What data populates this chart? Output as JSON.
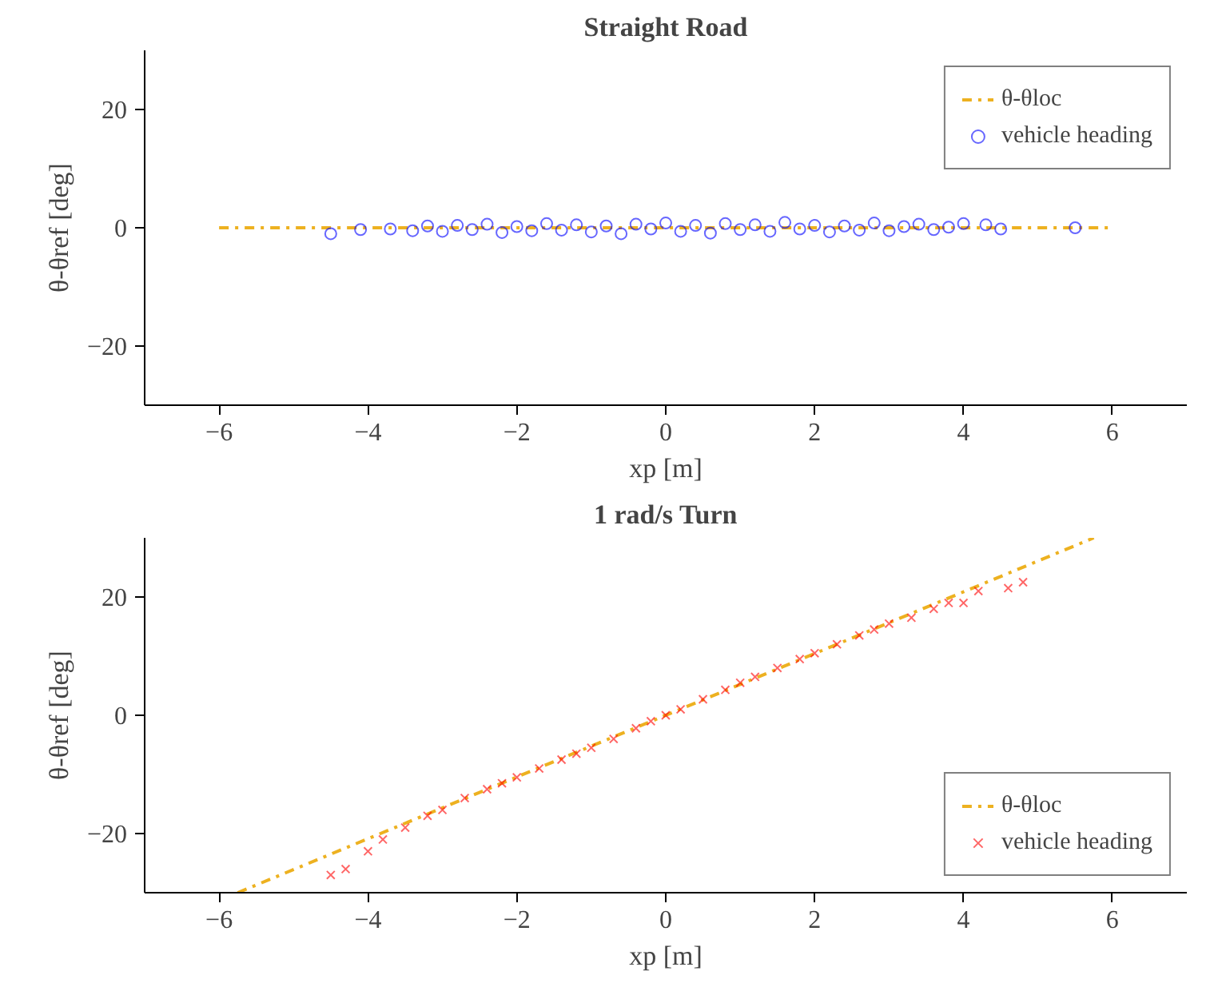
{
  "chart_data": [
    {
      "type": "scatter",
      "title": "Straight Road",
      "xlabel": "xp [m]",
      "ylabel": "θ-θref [deg]",
      "xlim": [
        -7,
        7
      ],
      "ylim": [
        -30,
        30
      ],
      "xticks": [
        -6,
        -4,
        -2,
        0,
        2,
        4,
        6
      ],
      "yticks": [
        -20,
        0,
        20
      ],
      "grid": false,
      "legend": "top right",
      "series": [
        {
          "name": "θ-θloc",
          "type": "line",
          "color": "#edb120",
          "line_style": "dashdot",
          "x": [
            -6,
            6
          ],
          "values": [
            0,
            0
          ]
        },
        {
          "name": "vehicle heading",
          "color": "#0000ff",
          "marker": "circle",
          "x": [
            -4.5,
            -4.1,
            -3.7,
            -3.4,
            -3.2,
            -3.0,
            -2.8,
            -2.6,
            -2.4,
            -2.2,
            -2.0,
            -1.8,
            -1.6,
            -1.4,
            -1.2,
            -1.0,
            -0.8,
            -0.6,
            -0.4,
            -0.2,
            0,
            0.2,
            0.4,
            0.6,
            0.8,
            1.0,
            1.2,
            1.4,
            1.6,
            1.8,
            2.0,
            2.2,
            2.4,
            2.6,
            2.8,
            3.0,
            3.2,
            3.4,
            3.6,
            3.8,
            4.0,
            4.3,
            4.5,
            5.5
          ],
          "values": [
            -1,
            -0.3,
            -0.2,
            -0.5,
            0.3,
            -0.6,
            0.4,
            -0.3,
            0.6,
            -0.8,
            0.2,
            -0.5,
            0.7,
            -0.4,
            0.5,
            -0.7,
            0.3,
            -1.0,
            0.6,
            -0.2,
            0.8,
            -0.6,
            0.4,
            -0.9,
            0.7,
            -0.3,
            0.5,
            -0.6,
            0.9,
            -0.2,
            0.4,
            -0.7,
            0.3,
            -0.4,
            0.8,
            -0.5,
            0.2,
            0.6,
            -0.3,
            0.1,
            0.7,
            0.5,
            -0.2,
            0
          ]
        }
      ]
    },
    {
      "type": "scatter",
      "title": "1 rad/s Turn",
      "xlabel": "xp [m]",
      "ylabel": "θ-θref [deg]",
      "xlim": [
        -7,
        7
      ],
      "ylim": [
        -30,
        30
      ],
      "xticks": [
        -6,
        -4,
        -2,
        0,
        2,
        4,
        6
      ],
      "yticks": [
        -20,
        0,
        20
      ],
      "grid": false,
      "legend": "bottom right",
      "series": [
        {
          "name": "θ-θloc",
          "type": "line",
          "color": "#edb120",
          "line_style": "dashdot",
          "x": [
            -5.75,
            5.75
          ],
          "values": [
            -30,
            30
          ]
        },
        {
          "name": "vehicle heading",
          "color": "#ff0000",
          "marker": "cross",
          "x": [
            -4.5,
            -4.3,
            -4.0,
            -3.8,
            -3.5,
            -3.2,
            -3.0,
            -2.7,
            -2.4,
            -2.2,
            -2.0,
            -1.7,
            -1.4,
            -1.2,
            -1.0,
            -0.7,
            -0.4,
            -0.2,
            0,
            0.2,
            0.5,
            0.8,
            1.0,
            1.2,
            1.5,
            1.8,
            2.0,
            2.3,
            2.6,
            2.8,
            3.0,
            3.3,
            3.6,
            3.8,
            4.0,
            4.2,
            4.6,
            4.8
          ],
          "values": [
            -27,
            -26,
            -23,
            -21,
            -19,
            -17,
            -16,
            -14,
            -12.5,
            -11.5,
            -10.5,
            -9,
            -7.5,
            -6.5,
            -5.5,
            -4,
            -2.2,
            -1,
            0,
            1,
            2.7,
            4.3,
            5.5,
            6.5,
            8,
            9.5,
            10.5,
            12,
            13.5,
            14.5,
            15.5,
            16.5,
            18,
            19,
            19,
            21,
            21.5,
            22.5
          ]
        }
      ]
    }
  ]
}
